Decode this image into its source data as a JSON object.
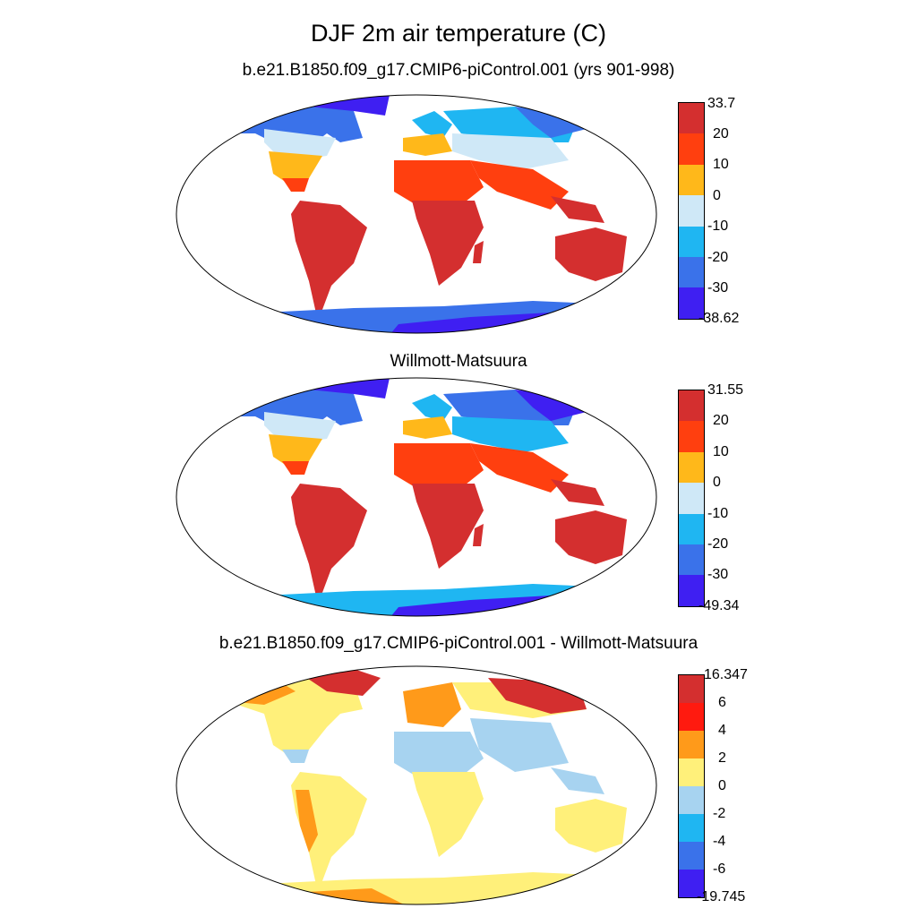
{
  "title": "DJF 2m air temperature (C)",
  "panels": [
    {
      "title": "b.e21.B1850.f09_g17.CMIP6-piControl.001 (yrs 901-998)",
      "colorbar": {
        "labels": [
          "33.7",
          "20",
          "10",
          "0",
          "-10",
          "-20",
          "-30",
          "-38.62"
        ],
        "colors": [
          "#d42f2f",
          "#ff3f0f",
          "#ffb81a",
          "#cfe8f7",
          "#1fb6f2",
          "#3a72ea",
          "#3f1ff2"
        ]
      }
    },
    {
      "title": "Willmott-Matsuura",
      "colorbar": {
        "labels": [
          "31.55",
          "20",
          "10",
          "0",
          "-10",
          "-20",
          "-30",
          "-49.34"
        ],
        "colors": [
          "#d42f2f",
          "#ff3f0f",
          "#ffb81a",
          "#cfe8f7",
          "#1fb6f2",
          "#3a72ea",
          "#3f1ff2"
        ]
      }
    },
    {
      "title": "b.e21.B1850.f09_g17.CMIP6-piControl.001 - Willmott-Matsuura",
      "colorbar": {
        "labels": [
          "16.347",
          "6",
          "4",
          "2",
          "0",
          "-2",
          "-4",
          "-6",
          "-19.745"
        ],
        "colors": [
          "#d42f2f",
          "#ff1a0f",
          "#ff9a1a",
          "#fff07a",
          "#a7d3f0",
          "#1fb6f2",
          "#3a72ea",
          "#3f1ff2"
        ]
      }
    }
  ]
}
